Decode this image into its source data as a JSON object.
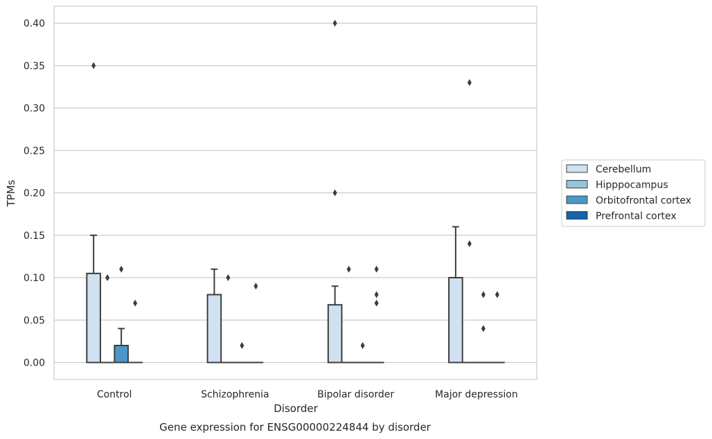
{
  "chart_data": {
    "type": "boxplot",
    "title": "Gene expression for ENSG00000224844 by disorder",
    "xlabel": "Disorder",
    "ylabel": "TPMs",
    "ylim": [
      -0.02,
      0.42
    ],
    "yticks": [
      0.0,
      0.05,
      0.1,
      0.15,
      0.2,
      0.25,
      0.3,
      0.35,
      0.4
    ],
    "ytick_labels": [
      "0.00",
      "0.05",
      "0.10",
      "0.15",
      "0.20",
      "0.25",
      "0.30",
      "0.35",
      "0.40"
    ],
    "grid": "horizontal",
    "legend_position": "right, outside plot",
    "categories": [
      "Control",
      "Schizophrenia",
      "Bipolar disorder",
      "Major depression"
    ],
    "series": [
      {
        "name": "Cerebellum",
        "color": "#d0e1f2",
        "boxes": [
          {
            "q1": 0.0,
            "median": 0.0,
            "q3": 0.105,
            "whislo": 0.0,
            "whishi": 0.15,
            "fliers": [
              0.35
            ]
          },
          {
            "q1": 0.0,
            "median": 0.0,
            "q3": 0.08,
            "whislo": 0.0,
            "whishi": 0.11,
            "fliers": []
          },
          {
            "q1": 0.0,
            "median": 0.0,
            "q3": 0.068,
            "whislo": 0.0,
            "whishi": 0.09,
            "fliers": [
              0.2,
              0.4
            ]
          },
          {
            "q1": 0.0,
            "median": 0.0,
            "q3": 0.1,
            "whislo": 0.0,
            "whishi": 0.16,
            "fliers": []
          }
        ]
      },
      {
        "name": "Hipppocampus",
        "color": "#94c4df",
        "boxes": [
          {
            "q1": 0.0,
            "median": 0.0,
            "q3": 0.0,
            "whislo": 0.0,
            "whishi": 0.0,
            "fliers": [
              0.1
            ]
          },
          {
            "q1": 0.0,
            "median": 0.0,
            "q3": 0.0,
            "whislo": 0.0,
            "whishi": 0.0,
            "fliers": [
              0.1
            ]
          },
          {
            "q1": 0.0,
            "median": 0.0,
            "q3": 0.0,
            "whislo": 0.0,
            "whishi": 0.0,
            "fliers": [
              0.11
            ]
          },
          {
            "q1": 0.0,
            "median": 0.0,
            "q3": 0.0,
            "whislo": 0.0,
            "whishi": 0.0,
            "fliers": [
              0.14,
              0.33
            ]
          }
        ]
      },
      {
        "name": "Orbitofrontal cortex",
        "color": "#4a98c9",
        "boxes": [
          {
            "q1": 0.0,
            "median": 0.0,
            "q3": 0.02,
            "whislo": 0.0,
            "whishi": 0.04,
            "fliers": [
              0.11
            ]
          },
          {
            "q1": 0.0,
            "median": 0.0,
            "q3": 0.0,
            "whislo": 0.0,
            "whishi": 0.0,
            "fliers": [
              0.02
            ]
          },
          {
            "q1": 0.0,
            "median": 0.0,
            "q3": 0.0,
            "whislo": 0.0,
            "whishi": 0.0,
            "fliers": [
              0.02
            ]
          },
          {
            "q1": 0.0,
            "median": 0.0,
            "q3": 0.0,
            "whislo": 0.0,
            "whishi": 0.0,
            "fliers": [
              0.04,
              0.08
            ]
          }
        ]
      },
      {
        "name": "Prefrontal cortex",
        "color": "#1764ab",
        "boxes": [
          {
            "q1": 0.0,
            "median": 0.0,
            "q3": 0.0,
            "whislo": 0.0,
            "whishi": 0.0,
            "fliers": [
              0.07
            ]
          },
          {
            "q1": 0.0,
            "median": 0.0,
            "q3": 0.0,
            "whislo": 0.0,
            "whishi": 0.0,
            "fliers": [
              0.09
            ]
          },
          {
            "q1": 0.0,
            "median": 0.0,
            "q3": 0.0,
            "whislo": 0.0,
            "whishi": 0.0,
            "fliers": [
              0.07,
              0.08,
              0.11
            ]
          },
          {
            "q1": 0.0,
            "median": 0.0,
            "q3": 0.0,
            "whislo": 0.0,
            "whishi": 0.0,
            "fliers": [
              0.08
            ]
          }
        ]
      }
    ]
  }
}
